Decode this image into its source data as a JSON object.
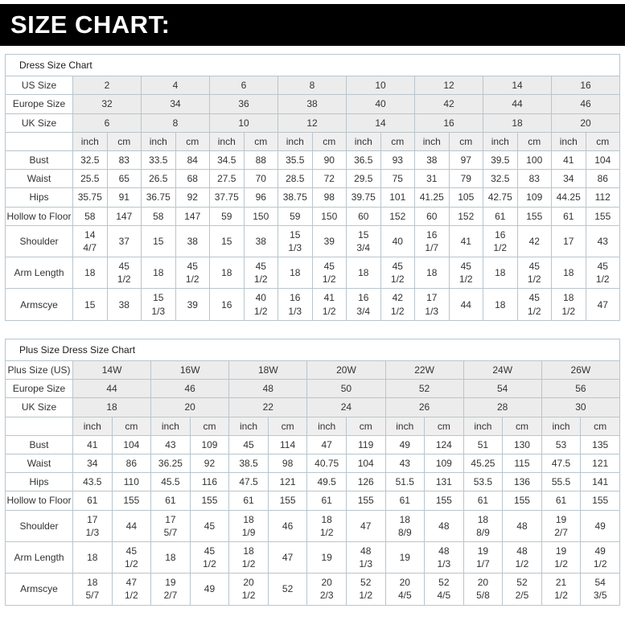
{
  "banner": {
    "title": "SIZE CHART:"
  },
  "colors": {
    "banner_bg": "#000000",
    "banner_text": "#ffffff",
    "table_border": "#b9c5cd",
    "header_row_bg": "#ececec",
    "text": "#333333"
  },
  "tables": [
    {
      "title": "Dress Size Chart",
      "size_rows": [
        {
          "label": "US Size",
          "values": [
            "2",
            "4",
            "6",
            "8",
            "10",
            "12",
            "14",
            "16"
          ]
        },
        {
          "label": "Europe Size",
          "values": [
            "32",
            "34",
            "36",
            "38",
            "40",
            "42",
            "44",
            "46"
          ]
        },
        {
          "label": "UK Size",
          "values": [
            "6",
            "8",
            "10",
            "12",
            "14",
            "16",
            "18",
            "20"
          ]
        }
      ],
      "unit_row": {
        "units": [
          "inch",
          "cm"
        ]
      },
      "measure_rows": [
        {
          "label": "Bust",
          "cells": [
            "32.5",
            "83",
            "33.5",
            "84",
            "34.5",
            "88",
            "35.5",
            "90",
            "36.5",
            "93",
            "38",
            "97",
            "39.5",
            "100",
            "41",
            "104"
          ]
        },
        {
          "label": "Waist",
          "cells": [
            "25.5",
            "65",
            "26.5",
            "68",
            "27.5",
            "70",
            "28.5",
            "72",
            "29.5",
            "75",
            "31",
            "79",
            "32.5",
            "83",
            "34",
            "86"
          ]
        },
        {
          "label": "Hips",
          "cells": [
            "35.75",
            "91",
            "36.75",
            "92",
            "37.75",
            "96",
            "38.75",
            "98",
            "39.75",
            "101",
            "41.25",
            "105",
            "42.75",
            "109",
            "44.25",
            "112"
          ]
        },
        {
          "label": "Hollow to Floor",
          "cells": [
            "58",
            "147",
            "58",
            "147",
            "59",
            "150",
            "59",
            "150",
            "60",
            "152",
            "60",
            "152",
            "61",
            "155",
            "61",
            "155"
          ]
        },
        {
          "label": "Shoulder",
          "cells": [
            "14 4/7",
            "37",
            "15",
            "38",
            "15",
            "38",
            "15 1/3",
            "39",
            "15 3/4",
            "40",
            "16 1/7",
            "41",
            "16 1/2",
            "42",
            "17",
            "43"
          ]
        },
        {
          "label": "Arm Length",
          "cells": [
            "18",
            "45 1/2",
            "18",
            "45 1/2",
            "18",
            "45 1/2",
            "18",
            "45 1/2",
            "18",
            "45 1/2",
            "18",
            "45 1/2",
            "18",
            "45 1/2",
            "18",
            "45 1/2"
          ]
        },
        {
          "label": "Armscye",
          "cells": [
            "15",
            "38",
            "15 1/3",
            "39",
            "16",
            "40 1/2",
            "16 1/3",
            "41 1/2",
            "16 3/4",
            "42 1/2",
            "17 1/3",
            "44",
            "18",
            "45 1/2",
            "18 1/2",
            "47"
          ]
        }
      ]
    },
    {
      "title": "Plus Size Dress Size Chart",
      "size_rows": [
        {
          "label": "Plus Size (US)",
          "values": [
            "14W",
            "16W",
            "18W",
            "20W",
            "22W",
            "24W",
            "26W"
          ]
        },
        {
          "label": "Europe Size",
          "values": [
            "44",
            "46",
            "48",
            "50",
            "52",
            "54",
            "56"
          ]
        },
        {
          "label": "UK Size",
          "values": [
            "18",
            "20",
            "22",
            "24",
            "26",
            "28",
            "30"
          ]
        }
      ],
      "unit_row": {
        "units": [
          "inch",
          "cm"
        ]
      },
      "measure_rows": [
        {
          "label": "Bust",
          "cells": [
            "41",
            "104",
            "43",
            "109",
            "45",
            "114",
            "47",
            "119",
            "49",
            "124",
            "51",
            "130",
            "53",
            "135"
          ]
        },
        {
          "label": "Waist",
          "cells": [
            "34",
            "86",
            "36.25",
            "92",
            "38.5",
            "98",
            "40.75",
            "104",
            "43",
            "109",
            "45.25",
            "115",
            "47.5",
            "121"
          ]
        },
        {
          "label": "Hips",
          "cells": [
            "43.5",
            "110",
            "45.5",
            "116",
            "47.5",
            "121",
            "49.5",
            "126",
            "51.5",
            "131",
            "53.5",
            "136",
            "55.5",
            "141"
          ]
        },
        {
          "label": "Hollow to Floor",
          "cells": [
            "61",
            "155",
            "61",
            "155",
            "61",
            "155",
            "61",
            "155",
            "61",
            "155",
            "61",
            "155",
            "61",
            "155"
          ]
        },
        {
          "label": "Shoulder",
          "cells": [
            "17 1/3",
            "44",
            "17 5/7",
            "45",
            "18 1/9",
            "46",
            "18 1/2",
            "47",
            "18 8/9",
            "48",
            "18 8/9",
            "48",
            "19 2/7",
            "49"
          ]
        },
        {
          "label": "Arm Length",
          "cells": [
            "18",
            "45 1/2",
            "18",
            "45 1/2",
            "18 1/2",
            "47",
            "19",
            "48 1/3",
            "19",
            "48 1/3",
            "19 1/7",
            "48 1/2",
            "19 1/2",
            "49 1/2"
          ]
        },
        {
          "label": "Armscye",
          "cells": [
            "18 5/7",
            "47 1/2",
            "19 2/7",
            "49",
            "20 1/2",
            "52",
            "20 2/3",
            "52 1/2",
            "20 4/5",
            "52 4/5",
            "20 5/8",
            "52 2/5",
            "21 1/2",
            "54 3/5"
          ]
        }
      ]
    }
  ]
}
